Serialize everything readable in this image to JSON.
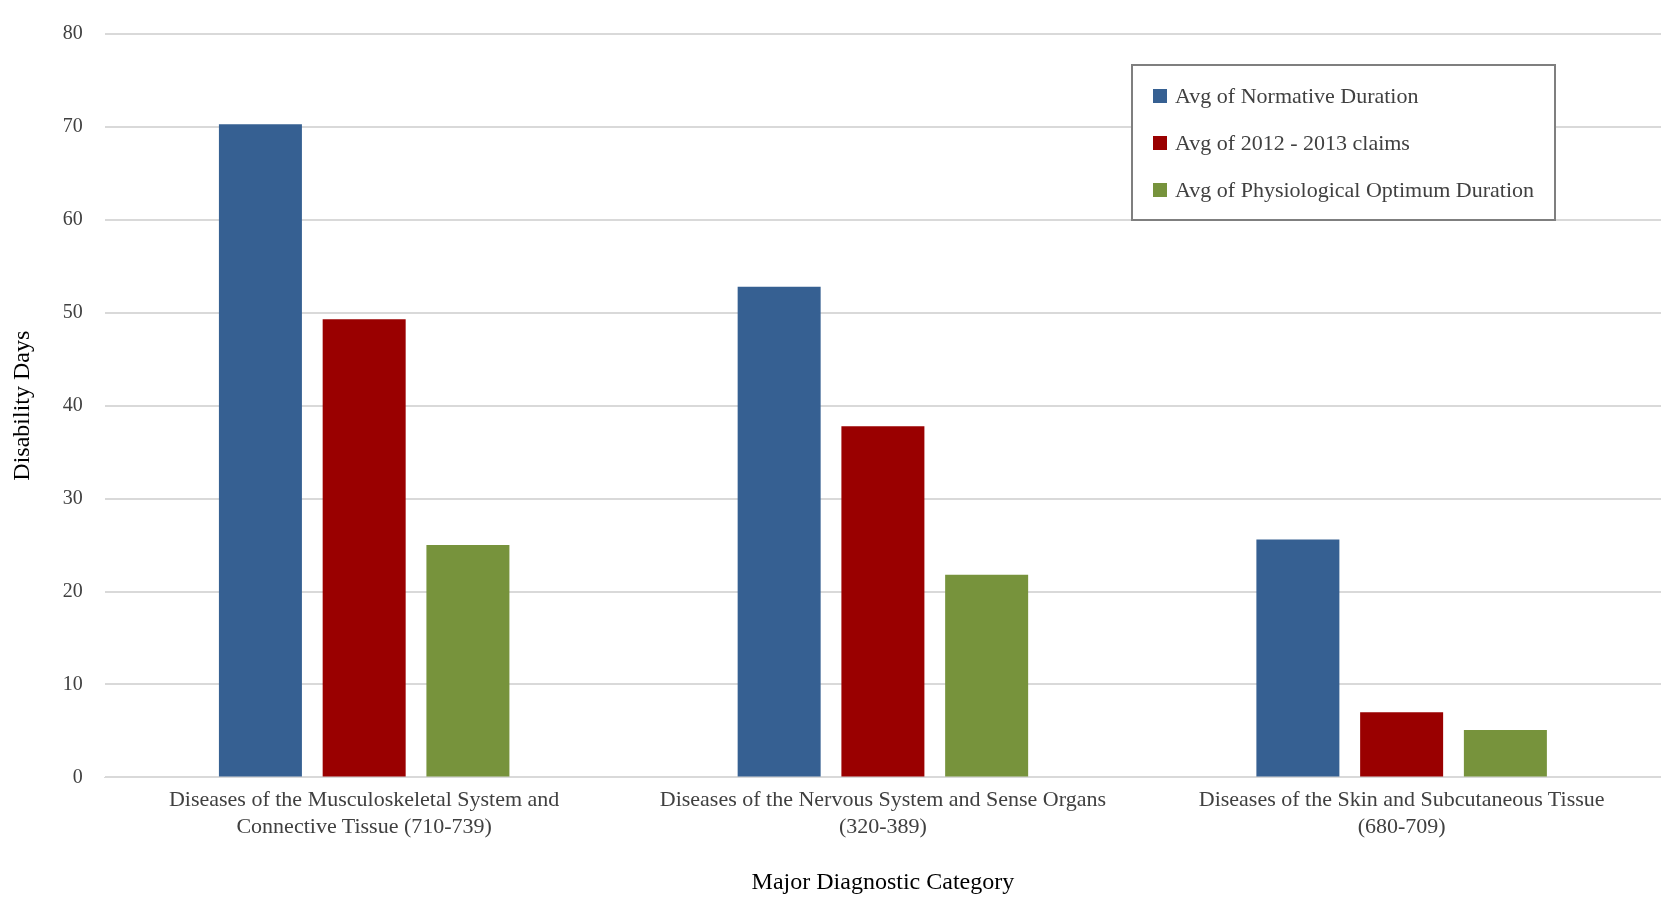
{
  "chart_data": {
    "type": "bar",
    "xlabel": "Major Diagnostic Category",
    "ylabel": "Disability Days",
    "categories": [
      "Diseases of the Musculoskeletal System and Connective Tissue (710-739)",
      "Diseases of the Nervous System and Sense Organs (320-389)",
      "Diseases of the Skin and Subcutaneous Tissue (680-709)"
    ],
    "series": [
      {
        "name": "Avg of Normative Duration",
        "color": "#366092",
        "values": [
          70.3,
          52.8,
          25.6
        ]
      },
      {
        "name": "Avg of 2012 - 2013 claims",
        "color": "#9a0000",
        "values": [
          49.3,
          37.8,
          7.0
        ]
      },
      {
        "name": "Avg of Physiological Optimum Duration",
        "color": "#77933c",
        "values": [
          25.0,
          21.8,
          5.1
        ]
      }
    ],
    "ylim": [
      0,
      80
    ],
    "yticks": [
      0,
      10,
      20,
      30,
      40,
      50,
      60,
      70,
      80
    ],
    "grid": "y",
    "legend": "top right"
  }
}
